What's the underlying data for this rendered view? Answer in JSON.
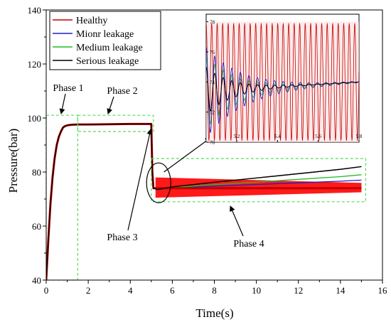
{
  "chart_data": {
    "type": "line",
    "title": "",
    "xlabel": "Time(s)",
    "ylabel": "Pressure(bar)",
    "xlim": [
      0,
      16
    ],
    "ylim": [
      40,
      140
    ],
    "xticks": [
      0,
      2,
      4,
      6,
      8,
      10,
      12,
      14,
      16
    ],
    "yticks": [
      40,
      60,
      80,
      100,
      120,
      140
    ],
    "grid": false,
    "legend_position": "top-left",
    "series": [
      {
        "name": "Healthy",
        "color": "#c00000",
        "band_color": "#ff0000",
        "x": [
          0,
          0.1,
          0.2,
          0.3,
          0.4,
          0.5,
          0.6,
          0.7,
          0.8,
          0.9,
          1.0,
          1.2,
          1.5,
          2,
          4,
          5.0,
          5.05,
          5.1,
          5.3,
          6,
          8,
          10,
          12,
          14,
          15
        ],
        "y": [
          40,
          55,
          68,
          78,
          85,
          90,
          93,
          95,
          96.5,
          97,
          97.3,
          97.5,
          97.6,
          97.6,
          97.8,
          97.8,
          80,
          74,
          74,
          74,
          74,
          74,
          74,
          74,
          74
        ]
      },
      {
        "name": "Mionr leakage",
        "color": "#1f1fcc",
        "x": [
          0,
          0.1,
          0.2,
          0.3,
          0.4,
          0.5,
          0.6,
          0.7,
          0.8,
          0.9,
          1.0,
          1.2,
          1.5,
          2,
          4,
          5.0,
          5.05,
          5.1,
          5.3,
          6,
          8,
          10,
          12,
          14,
          15
        ],
        "y": [
          40,
          55,
          68,
          78,
          85,
          90,
          93,
          95,
          96.5,
          97,
          97.3,
          97.5,
          97.6,
          97.6,
          97.8,
          97.8,
          80,
          74,
          73.5,
          74.2,
          74.8,
          75.4,
          76,
          76.6,
          77
        ]
      },
      {
        "name": "Medium leakage",
        "color": "#22bb22",
        "x": [
          0,
          0.1,
          0.2,
          0.3,
          0.4,
          0.5,
          0.6,
          0.7,
          0.8,
          0.9,
          1.0,
          1.2,
          1.5,
          2,
          4,
          5.0,
          5.05,
          5.1,
          5.3,
          6,
          8,
          10,
          12,
          14,
          15
        ],
        "y": [
          40,
          55,
          68,
          78,
          85,
          90,
          93,
          95,
          96.5,
          97,
          97.3,
          97.5,
          97.6,
          97.6,
          97.8,
          97.8,
          80,
          74,
          73.5,
          74.3,
          75.3,
          76.3,
          77.3,
          78.3,
          79
        ]
      },
      {
        "name": "Serious leakage",
        "color": "#000000",
        "x": [
          0,
          0.1,
          0.2,
          0.3,
          0.4,
          0.5,
          0.6,
          0.7,
          0.8,
          0.9,
          1.0,
          1.2,
          1.5,
          2,
          4,
          5.0,
          5.05,
          5.1,
          5.3,
          6,
          8,
          10,
          12,
          14,
          15
        ],
        "y": [
          40,
          55,
          68,
          78,
          85,
          90,
          93,
          95,
          96.5,
          97,
          97.3,
          97.5,
          97.6,
          97.6,
          97.8,
          97.8,
          80,
          74,
          73.5,
          74.5,
          76.2,
          77.8,
          79.4,
          81,
          82
        ]
      }
    ],
    "healthy_band": {
      "x_start": 5.2,
      "x_end": 15,
      "y_low_start": 70.5,
      "y_high_start": 78,
      "y_low_end": 72.5,
      "y_high_end": 76
    },
    "annotations": [
      {
        "label": "Phase 1",
        "region_x": [
          0,
          1.5
        ],
        "region_y": [
          40,
          101
        ]
      },
      {
        "label": "Phase 2",
        "region_x": [
          1.5,
          5
        ],
        "region_y": [
          95,
          101
        ]
      },
      {
        "label": "Phase 3",
        "target": [
          5.0,
          80
        ]
      },
      {
        "label": "Phase 4",
        "region_x": [
          5,
          15
        ],
        "region_y": [
          69,
          85
        ]
      }
    ],
    "inset": {
      "xlim": [
        5.05,
        5.8
      ],
      "ylim": [
        70,
        78.5
      ],
      "xticks": [
        5.2,
        5.4,
        5.6,
        5.8
      ],
      "yticks": [
        70,
        72,
        74,
        76,
        78
      ],
      "series": [
        {
          "name": "Healthy",
          "center": 74,
          "amplitude": 3.9,
          "decay": 0,
          "period": 0.027
        },
        {
          "name": "Mionr leakage",
          "center": 73.3,
          "amplitude": 3.0,
          "decay": 5.5,
          "period": 0.042,
          "trend_end": 74
        }
      ]
    }
  }
}
